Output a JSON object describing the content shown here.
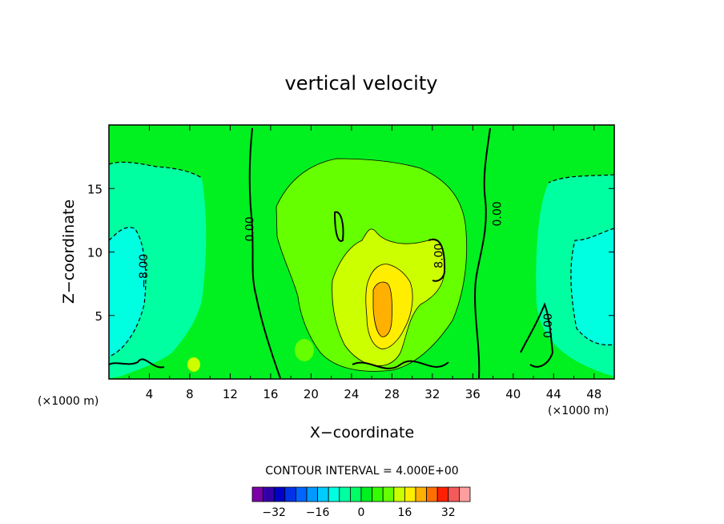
{
  "chart_data": {
    "type": "heatmap",
    "title": "vertical velocity",
    "xlabel": "X−coordinate",
    "ylabel": "Z−coordinate",
    "x_unit_left": "(×1000 m)",
    "x_unit_right": "(×1000 m)",
    "xlim": [
      0,
      50
    ],
    "ylim": [
      0,
      20
    ],
    "x_ticks": [
      4,
      8,
      12,
      16,
      20,
      24,
      28,
      32,
      36,
      40,
      44,
      48
    ],
    "y_ticks": [
      5,
      10,
      15
    ],
    "contour_interval_text": "CONTOUR INTERVAL =  4.000E+00",
    "contour_labels": [
      {
        "text": "0.00",
        "x": 14.3,
        "y": 11.8
      },
      {
        "text": "8.00",
        "x": 33.0,
        "y": 9.7
      },
      {
        "text": "0.00",
        "x": 38.8,
        "y": 13.0
      },
      {
        "text": "−8.00",
        "x": 3.8,
        "y": 8.5
      },
      {
        "text": "0.00",
        "x": 43.8,
        "y": 4.2
      }
    ],
    "colorbar": {
      "levels": [
        -36,
        -32,
        -28,
        -24,
        -20,
        -16,
        -12,
        -8,
        -4,
        0,
        4,
        8,
        12,
        16,
        20,
        24,
        28,
        32,
        36
      ],
      "tick_labels": [
        -32,
        -16,
        0,
        16,
        32
      ],
      "colors": [
        "#7b00a8",
        "#3300a8",
        "#0000c8",
        "#0033e6",
        "#0066ff",
        "#0099ff",
        "#00ccff",
        "#00ffe0",
        "#00ffa0",
        "#00ff66",
        "#00f020",
        "#33ff00",
        "#66ff00",
        "#ccff00",
        "#ffee00",
        "#ffb000",
        "#ff7000",
        "#ff2000",
        "#f55a5a",
        "#ff9e9e"
      ]
    },
    "field_regions": [
      {
        "name": "background",
        "value": 2,
        "color": "#00f020"
      },
      {
        "name": "left-downdraft",
        "value": -6,
        "color": "#00ffa0"
      },
      {
        "name": "left-downdraft-core",
        "value": -10,
        "color": "#00ffe0"
      },
      {
        "name": "right-downdraft",
        "value": -6,
        "color": "#00ffa0"
      },
      {
        "name": "right-downdraft-core",
        "value": -10,
        "color": "#00ffe0"
      },
      {
        "name": "updraft-outer",
        "value": 6,
        "color": "#66ff00"
      },
      {
        "name": "updraft-mid",
        "value": 10,
        "color": "#ccff00"
      },
      {
        "name": "updraft-inner",
        "value": 14,
        "color": "#ffee00"
      },
      {
        "name": "updraft-core",
        "value": 18,
        "color": "#ffb000"
      }
    ]
  }
}
